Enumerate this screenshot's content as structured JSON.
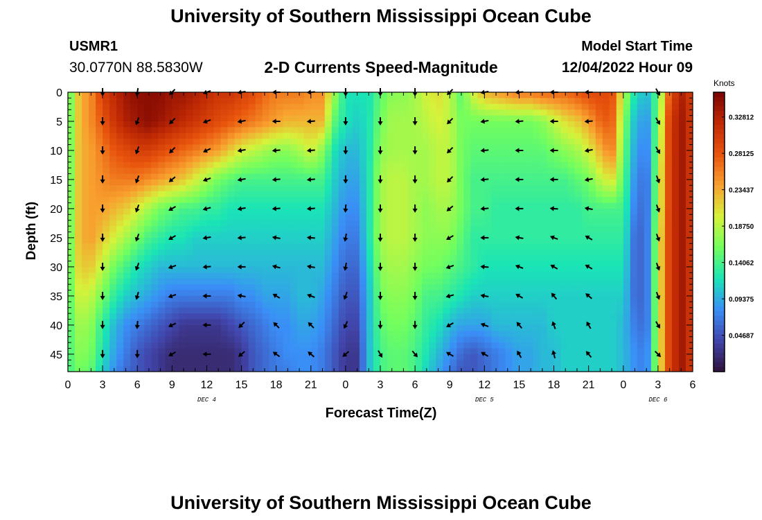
{
  "title": "University of Southern Mississippi Ocean Cube",
  "footer_title": "University of Southern Mississippi Ocean Cube",
  "station": {
    "id": "USMR1",
    "coords": "30.0770N  88.5830W"
  },
  "model": {
    "start_label": "Model Start Time",
    "start_value": "12/04/2022 Hour 09"
  },
  "colorbar": {
    "unit": "Knots",
    "tick_labels": [
      "0.32812",
      "0.28125",
      "0.23437",
      "0.18750",
      "0.14062",
      "0.09375",
      "0.04687"
    ],
    "tick_values": [
      0.32812,
      0.28125,
      0.23437,
      0.1875,
      0.14062,
      0.09375,
      0.04687
    ],
    "range": [
      0,
      0.36
    ]
  },
  "colors": {
    "dark_red": "#7a0403",
    "red": "#c02a04",
    "orange_red": "#e8540d",
    "orange": "#f8a02f",
    "yellow_green": "#d6f23a",
    "green": "#72fe5e",
    "cyan": "#1ae4b6",
    "blue": "#3a8ff7",
    "indigo": "#4145ab",
    "dark_indigo": "#30123b"
  },
  "chart_data": {
    "type": "heatmap",
    "title": "2-D Currents Speed-Magnitude",
    "xlabel": "Forecast Time(Z)",
    "ylabel": "Depth (ft)",
    "x_tick_labels": [
      "0",
      "3",
      "6",
      "9",
      "12",
      "15",
      "18",
      "21",
      "0",
      "3",
      "6",
      "9",
      "12",
      "15",
      "18",
      "21",
      "0",
      "3",
      "6"
    ],
    "x_range_hours": [
      0,
      54
    ],
    "date_labels": [
      {
        "text": "DEC 4",
        "hour": 12
      },
      {
        "text": "DEC 5",
        "hour": 36
      },
      {
        "text": "DEC 6",
        "hour": 51
      }
    ],
    "y_tick_labels": [
      "0",
      "5",
      "10",
      "15",
      "20",
      "25",
      "30",
      "35",
      "40",
      "45"
    ],
    "y_ticks": [
      0,
      5,
      10,
      15,
      20,
      25,
      30,
      35,
      40,
      45
    ],
    "ylim_ft": [
      0,
      48
    ],
    "y_inverted": true,
    "grid_x_hours": [
      0,
      1,
      2,
      3,
      4,
      5,
      6,
      7,
      8,
      9,
      10,
      11,
      12,
      13,
      14,
      15,
      16,
      17,
      18,
      19,
      20,
      21,
      22,
      23,
      24,
      25,
      26,
      27,
      28,
      29,
      30,
      31,
      32,
      33,
      34,
      35,
      36,
      37,
      38,
      39,
      40,
      41,
      42,
      43,
      44,
      45,
      46,
      47,
      48,
      49,
      50,
      51,
      52,
      53,
      54
    ],
    "grid_depths_ft": [
      0,
      5,
      10,
      15,
      20,
      25,
      30,
      35,
      40,
      45,
      48
    ],
    "speed_knots": [
      [
        0.14,
        0.23,
        0.25,
        0.3,
        0.32,
        0.34,
        0.35,
        0.35,
        0.35,
        0.34,
        0.34,
        0.33,
        0.32,
        0.31,
        0.31,
        0.3,
        0.29,
        0.27,
        0.26,
        0.26,
        0.26,
        0.25,
        0.25,
        0.18,
        0.12,
        0.12,
        0.12,
        0.15,
        0.17,
        0.17,
        0.18,
        0.2,
        0.21,
        0.19,
        0.15,
        0.2,
        0.23,
        0.24,
        0.25,
        0.26,
        0.26,
        0.27,
        0.27,
        0.27,
        0.28,
        0.29,
        0.29,
        0.29,
        0.19,
        0.12,
        0.1,
        0.15,
        0.28,
        0.33,
        0.3
      ],
      [
        0.14,
        0.23,
        0.25,
        0.28,
        0.31,
        0.33,
        0.34,
        0.35,
        0.34,
        0.33,
        0.32,
        0.31,
        0.3,
        0.29,
        0.28,
        0.27,
        0.26,
        0.25,
        0.24,
        0.23,
        0.23,
        0.23,
        0.23,
        0.15,
        0.12,
        0.11,
        0.12,
        0.16,
        0.18,
        0.18,
        0.18,
        0.19,
        0.2,
        0.19,
        0.16,
        0.16,
        0.16,
        0.16,
        0.16,
        0.16,
        0.16,
        0.17,
        0.19,
        0.21,
        0.22,
        0.24,
        0.27,
        0.28,
        0.17,
        0.1,
        0.08,
        0.16,
        0.3,
        0.34,
        0.3
      ],
      [
        0.14,
        0.23,
        0.24,
        0.26,
        0.28,
        0.29,
        0.3,
        0.3,
        0.29,
        0.28,
        0.27,
        0.26,
        0.25,
        0.24,
        0.22,
        0.2,
        0.19,
        0.18,
        0.17,
        0.17,
        0.18,
        0.2,
        0.17,
        0.12,
        0.1,
        0.1,
        0.12,
        0.17,
        0.18,
        0.18,
        0.18,
        0.18,
        0.19,
        0.19,
        0.16,
        0.15,
        0.15,
        0.15,
        0.15,
        0.15,
        0.15,
        0.15,
        0.16,
        0.17,
        0.18,
        0.2,
        0.23,
        0.26,
        0.16,
        0.09,
        0.07,
        0.17,
        0.3,
        0.34,
        0.3
      ],
      [
        0.14,
        0.23,
        0.24,
        0.25,
        0.26,
        0.26,
        0.26,
        0.25,
        0.24,
        0.23,
        0.22,
        0.2,
        0.18,
        0.16,
        0.15,
        0.14,
        0.14,
        0.14,
        0.14,
        0.14,
        0.14,
        0.14,
        0.14,
        0.11,
        0.09,
        0.09,
        0.12,
        0.18,
        0.19,
        0.19,
        0.18,
        0.18,
        0.19,
        0.19,
        0.16,
        0.14,
        0.14,
        0.14,
        0.14,
        0.14,
        0.14,
        0.14,
        0.14,
        0.14,
        0.15,
        0.16,
        0.19,
        0.21,
        0.15,
        0.08,
        0.06,
        0.18,
        0.3,
        0.34,
        0.3
      ],
      [
        0.14,
        0.23,
        0.24,
        0.24,
        0.23,
        0.22,
        0.2,
        0.18,
        0.16,
        0.15,
        0.14,
        0.14,
        0.13,
        0.13,
        0.12,
        0.12,
        0.12,
        0.12,
        0.12,
        0.12,
        0.12,
        0.12,
        0.12,
        0.1,
        0.08,
        0.08,
        0.12,
        0.18,
        0.19,
        0.19,
        0.18,
        0.17,
        0.18,
        0.18,
        0.16,
        0.14,
        0.14,
        0.13,
        0.13,
        0.13,
        0.13,
        0.13,
        0.13,
        0.13,
        0.13,
        0.14,
        0.14,
        0.14,
        0.14,
        0.07,
        0.06,
        0.18,
        0.3,
        0.34,
        0.3
      ],
      [
        0.14,
        0.23,
        0.24,
        0.22,
        0.2,
        0.18,
        0.16,
        0.14,
        0.13,
        0.12,
        0.12,
        0.11,
        0.11,
        0.11,
        0.11,
        0.11,
        0.11,
        0.11,
        0.11,
        0.11,
        0.11,
        0.11,
        0.11,
        0.09,
        0.07,
        0.07,
        0.12,
        0.18,
        0.19,
        0.19,
        0.18,
        0.17,
        0.17,
        0.17,
        0.15,
        0.13,
        0.13,
        0.13,
        0.13,
        0.13,
        0.13,
        0.13,
        0.13,
        0.13,
        0.13,
        0.13,
        0.13,
        0.13,
        0.13,
        0.06,
        0.06,
        0.19,
        0.3,
        0.34,
        0.3
      ],
      [
        0.14,
        0.22,
        0.22,
        0.19,
        0.16,
        0.14,
        0.12,
        0.11,
        0.1,
        0.1,
        0.1,
        0.1,
        0.1,
        0.1,
        0.1,
        0.1,
        0.1,
        0.1,
        0.1,
        0.1,
        0.1,
        0.1,
        0.1,
        0.08,
        0.06,
        0.06,
        0.11,
        0.17,
        0.18,
        0.18,
        0.17,
        0.16,
        0.16,
        0.15,
        0.14,
        0.13,
        0.12,
        0.12,
        0.12,
        0.12,
        0.12,
        0.12,
        0.12,
        0.12,
        0.12,
        0.12,
        0.12,
        0.12,
        0.12,
        0.06,
        0.06,
        0.19,
        0.3,
        0.34,
        0.3
      ],
      [
        0.14,
        0.2,
        0.19,
        0.16,
        0.13,
        0.11,
        0.1,
        0.09,
        0.08,
        0.07,
        0.07,
        0.07,
        0.07,
        0.07,
        0.07,
        0.08,
        0.08,
        0.09,
        0.09,
        0.09,
        0.1,
        0.1,
        0.09,
        0.07,
        0.05,
        0.05,
        0.1,
        0.16,
        0.17,
        0.17,
        0.16,
        0.14,
        0.14,
        0.13,
        0.12,
        0.11,
        0.11,
        0.11,
        0.11,
        0.11,
        0.11,
        0.11,
        0.11,
        0.11,
        0.11,
        0.11,
        0.11,
        0.11,
        0.11,
        0.06,
        0.06,
        0.19,
        0.3,
        0.34,
        0.3
      ],
      [
        0.14,
        0.18,
        0.17,
        0.13,
        0.1,
        0.08,
        0.07,
        0.06,
        0.05,
        0.04,
        0.03,
        0.03,
        0.03,
        0.03,
        0.04,
        0.05,
        0.06,
        0.07,
        0.08,
        0.08,
        0.09,
        0.09,
        0.08,
        0.06,
        0.04,
        0.04,
        0.1,
        0.15,
        0.16,
        0.16,
        0.15,
        0.13,
        0.12,
        0.1,
        0.09,
        0.09,
        0.09,
        0.1,
        0.1,
        0.1,
        0.1,
        0.1,
        0.11,
        0.11,
        0.11,
        0.11,
        0.11,
        0.11,
        0.1,
        0.07,
        0.06,
        0.19,
        0.3,
        0.34,
        0.3
      ],
      [
        0.14,
        0.17,
        0.16,
        0.12,
        0.09,
        0.07,
        0.05,
        0.04,
        0.03,
        0.02,
        0.02,
        0.02,
        0.02,
        0.02,
        0.02,
        0.03,
        0.05,
        0.06,
        0.07,
        0.08,
        0.08,
        0.08,
        0.07,
        0.05,
        0.03,
        0.03,
        0.1,
        0.14,
        0.15,
        0.15,
        0.14,
        0.12,
        0.1,
        0.08,
        0.06,
        0.05,
        0.06,
        0.07,
        0.08,
        0.09,
        0.09,
        0.1,
        0.1,
        0.11,
        0.11,
        0.11,
        0.11,
        0.11,
        0.1,
        0.08,
        0.07,
        0.19,
        0.3,
        0.34,
        0.3
      ],
      [
        0.14,
        0.16,
        0.15,
        0.11,
        0.08,
        0.06,
        0.05,
        0.04,
        0.03,
        0.02,
        0.02,
        0.02,
        0.02,
        0.02,
        0.02,
        0.03,
        0.05,
        0.06,
        0.07,
        0.07,
        0.08,
        0.08,
        0.07,
        0.05,
        0.03,
        0.03,
        0.1,
        0.14,
        0.15,
        0.15,
        0.14,
        0.11,
        0.09,
        0.07,
        0.05,
        0.05,
        0.06,
        0.07,
        0.08,
        0.09,
        0.09,
        0.1,
        0.1,
        0.11,
        0.11,
        0.11,
        0.11,
        0.11,
        0.1,
        0.08,
        0.07,
        0.19,
        0.3,
        0.34,
        0.3
      ]
    ],
    "arrows": {
      "hours": [
        3,
        6,
        9,
        12,
        15,
        18,
        21,
        24,
        27,
        30,
        33,
        36,
        39,
        42,
        45,
        51
      ],
      "depths_ft": [
        0,
        5,
        10,
        15,
        20,
        25,
        30,
        35,
        40,
        45
      ],
      "direction_deg_math": [
        [
          -90,
          -100,
          -135,
          -160,
          -170,
          -180,
          -175,
          -90,
          -90,
          -90,
          -135,
          -170,
          -175,
          -180,
          -180,
          -60
        ],
        [
          -90,
          -110,
          -135,
          -160,
          -170,
          -180,
          -175,
          -90,
          -90,
          -90,
          -135,
          -170,
          -175,
          -180,
          -175,
          -60
        ],
        [
          -90,
          -110,
          -135,
          -155,
          -170,
          -175,
          -175,
          -90,
          -90,
          -90,
          -135,
          -175,
          -180,
          -180,
          -170,
          -60
        ],
        [
          -90,
          -110,
          -140,
          -160,
          -170,
          -175,
          -175,
          -90,
          -90,
          -90,
          -135,
          -175,
          -180,
          -180,
          -170,
          -70
        ],
        [
          -90,
          -110,
          -150,
          -165,
          -170,
          -175,
          -175,
          -95,
          -90,
          -90,
          -140,
          -175,
          180,
          175,
          170,
          -70
        ],
        [
          -90,
          -110,
          -150,
          -170,
          -175,
          170,
          175,
          -100,
          -90,
          -90,
          -150,
          180,
          170,
          160,
          150,
          -70
        ],
        [
          -90,
          -110,
          -160,
          -175,
          -180,
          165,
          170,
          -100,
          -90,
          -90,
          -160,
          175,
          160,
          150,
          150,
          -70
        ],
        [
          -90,
          -105,
          -160,
          -180,
          170,
          150,
          160,
          -110,
          -90,
          -90,
          -165,
          170,
          150,
          130,
          140,
          -70
        ],
        [
          -90,
          -95,
          -155,
          -180,
          -135,
          135,
          135,
          -115,
          -90,
          -90,
          -150,
          160,
          130,
          110,
          120,
          -60
        ],
        [
          -90,
          -90,
          -150,
          -180,
          -140,
          145,
          140,
          -140,
          -60,
          -50,
          150,
          150,
          120,
          105,
          130,
          -45
        ]
      ]
    }
  }
}
